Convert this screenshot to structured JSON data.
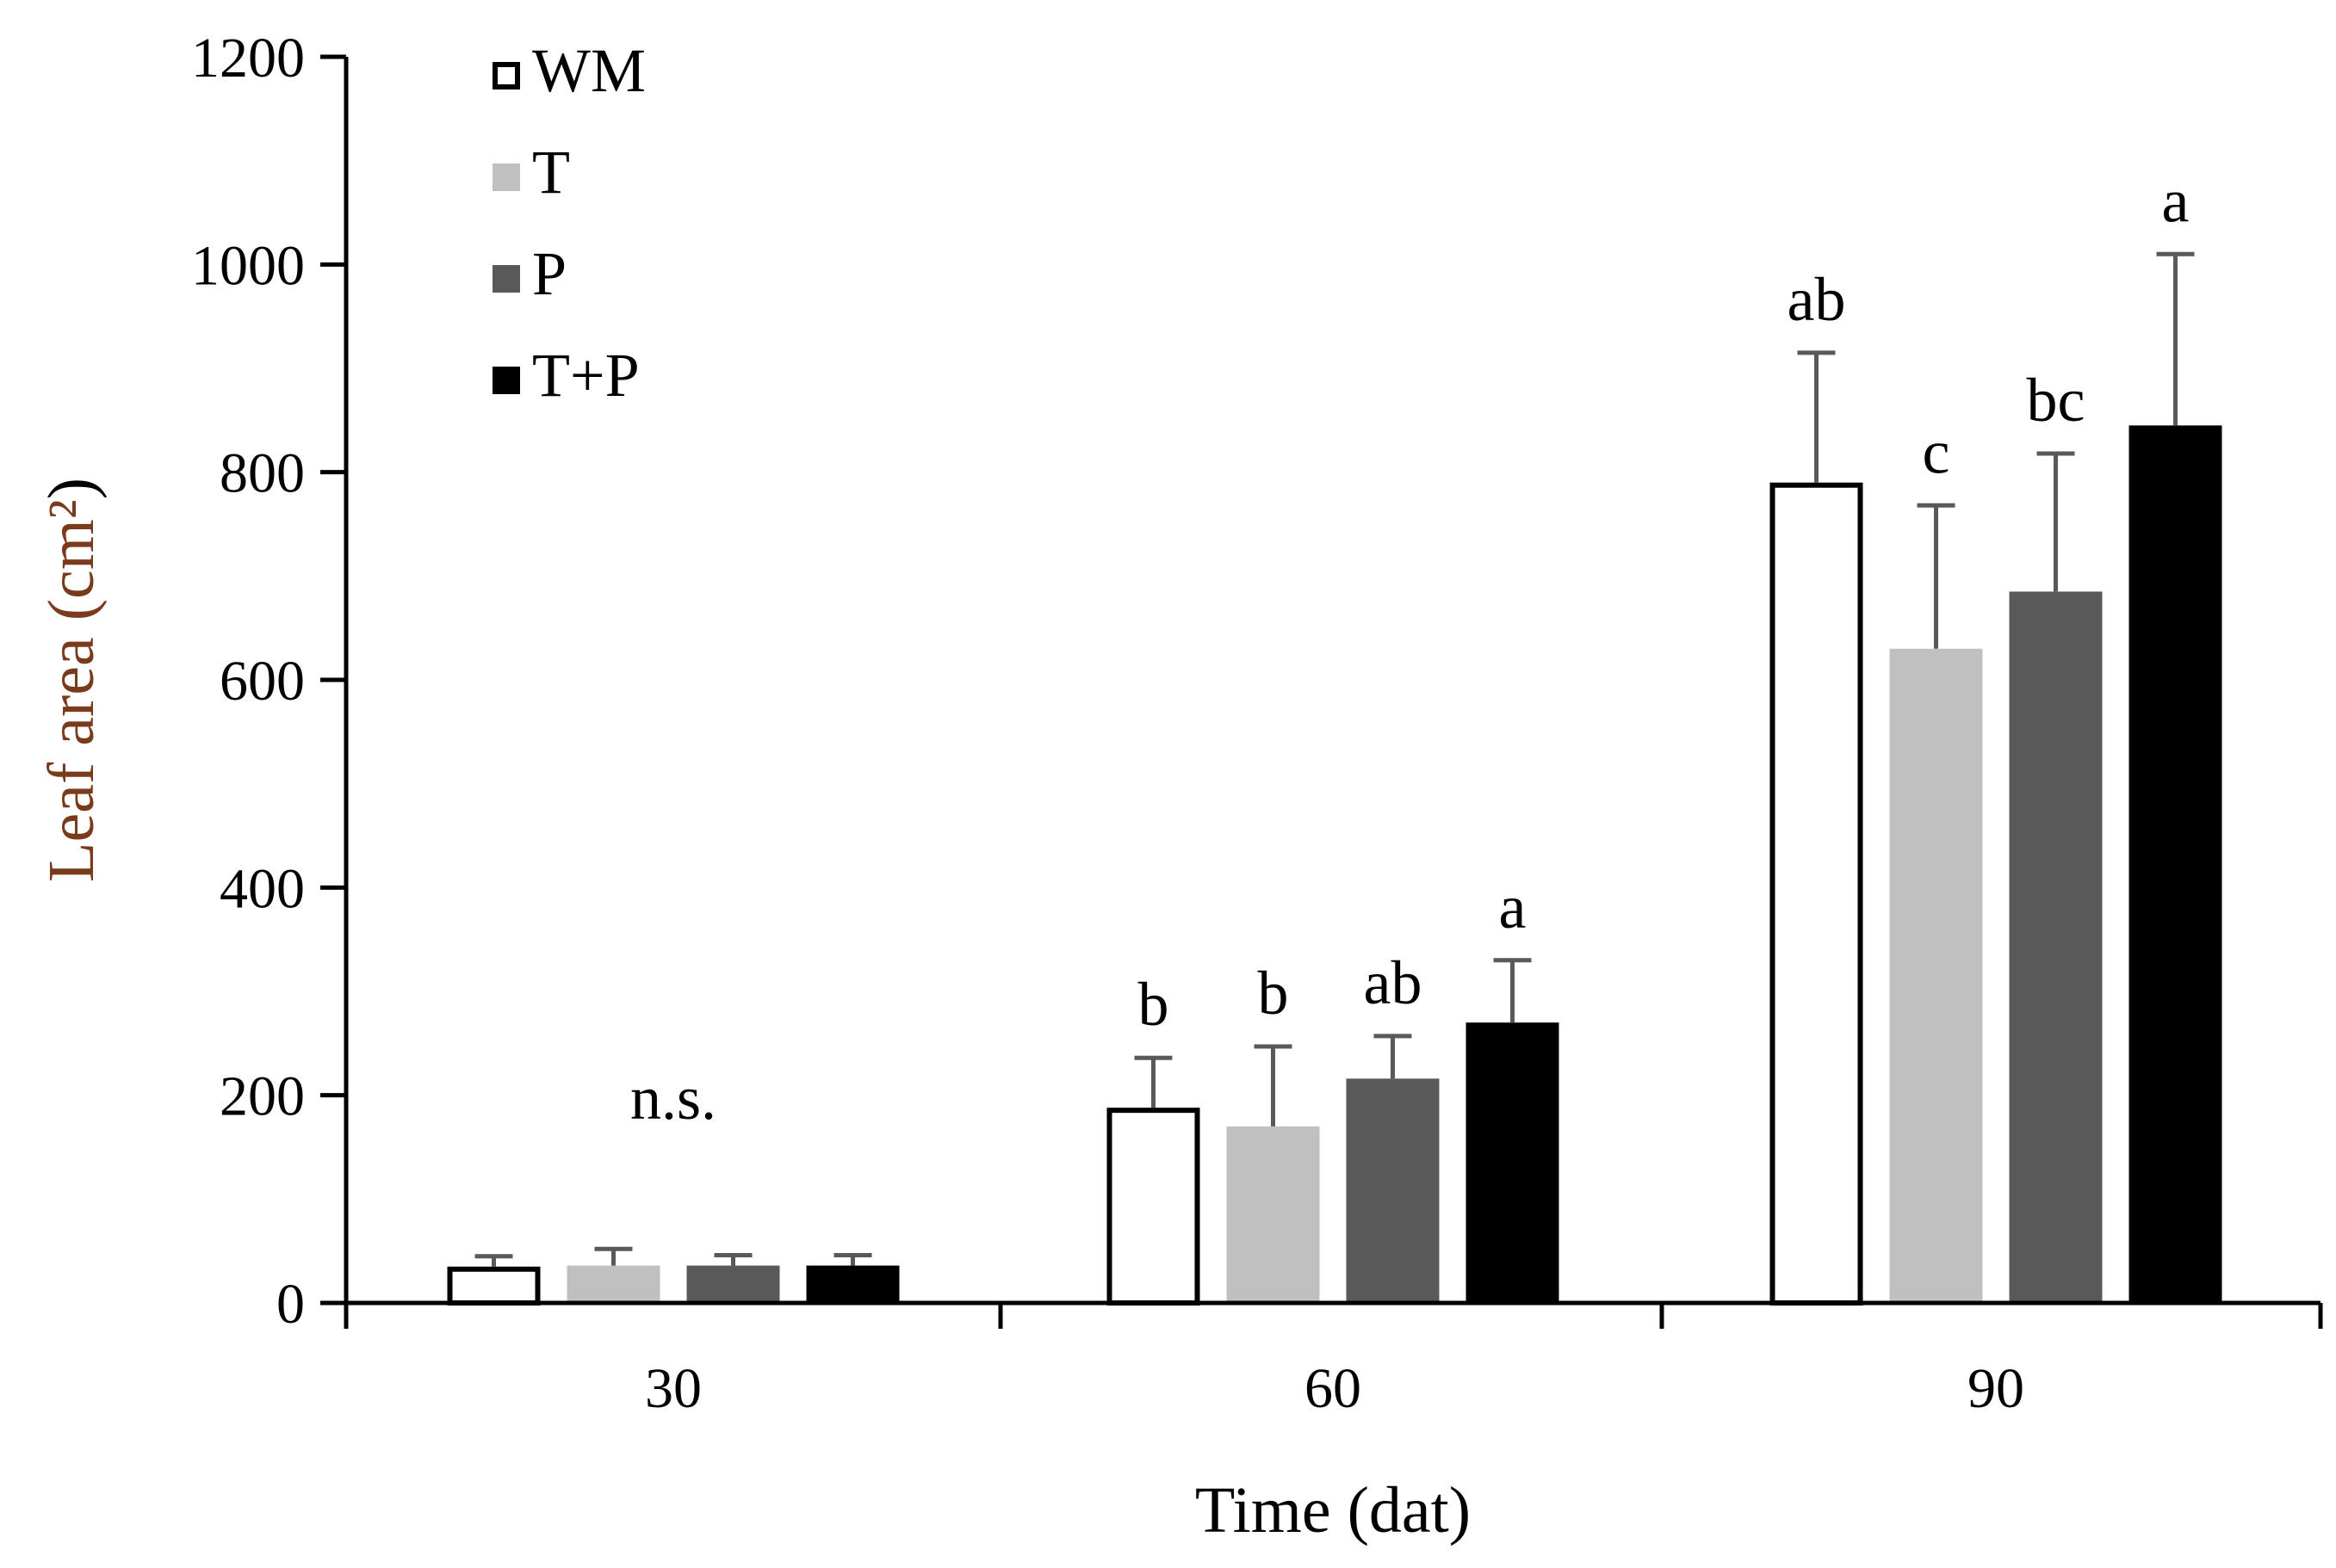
{
  "chart_data": {
    "type": "bar",
    "title": "",
    "xlabel": "Time (dat)",
    "ylabel": "Leaf area (cm²)",
    "ylabel_colors": {
      "main": "#7a3b1c",
      "suffix": "#000000"
    },
    "ylim": [
      0,
      1200
    ],
    "yticks": [
      0,
      200,
      400,
      600,
      800,
      1000,
      1200
    ],
    "categories": [
      "30",
      "60",
      "90"
    ],
    "series": [
      {
        "name": "WM",
        "fill": "#ffffff",
        "stroke": "#000000",
        "values": [
          35,
          188,
          790
        ],
        "errors": [
          10,
          48,
          125
        ]
      },
      {
        "name": "T",
        "fill": "#c0c0c0",
        "stroke": "#c0c0c0",
        "values": [
          36,
          170,
          630
        ],
        "errors": [
          16,
          77,
          138
        ]
      },
      {
        "name": "P",
        "fill": "#595959",
        "stroke": "#595959",
        "values": [
          36,
          216,
          685
        ],
        "errors": [
          10,
          41,
          133
        ]
      },
      {
        "name": "T+P",
        "fill": "#000000",
        "stroke": "#000000",
        "values": [
          36,
          270,
          845
        ],
        "errors": [
          10,
          60,
          165
        ]
      }
    ],
    "error_bar_color": "#595959",
    "annotations": [
      {
        "category": 0,
        "series": null,
        "text": "n.s."
      },
      {
        "category": 1,
        "series": 0,
        "text": "b"
      },
      {
        "category": 1,
        "series": 1,
        "text": "b"
      },
      {
        "category": 1,
        "series": 2,
        "text": "ab"
      },
      {
        "category": 1,
        "series": 3,
        "text": "a"
      },
      {
        "category": 2,
        "series": 0,
        "text": "ab"
      },
      {
        "category": 2,
        "series": 1,
        "text": "c"
      },
      {
        "category": 2,
        "series": 2,
        "text": "bc"
      },
      {
        "category": 2,
        "series": 3,
        "text": "a"
      }
    ],
    "legend_position": "top-left",
    "grid": false
  }
}
